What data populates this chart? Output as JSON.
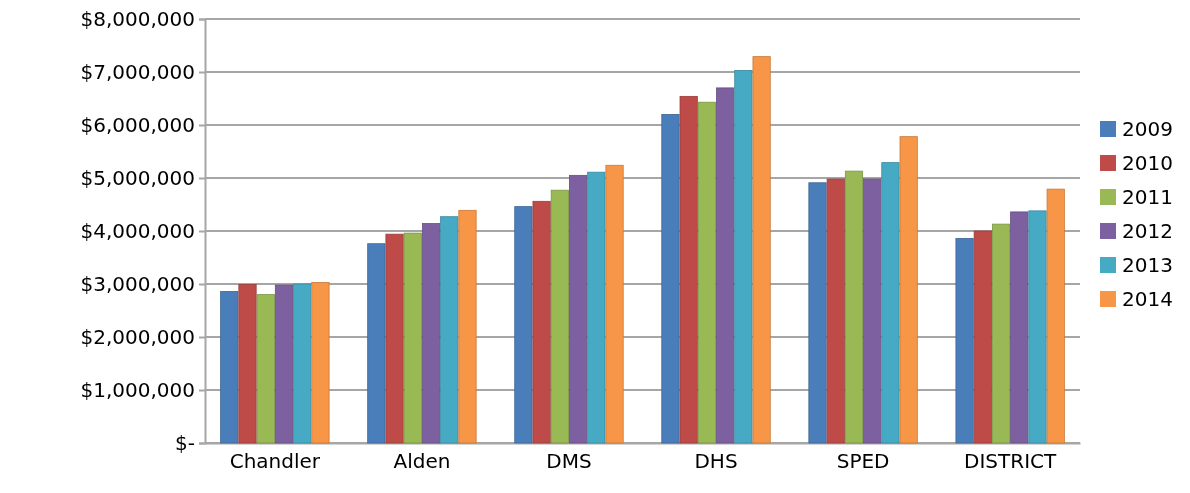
{
  "chart_data": {
    "type": "bar",
    "categories": [
      "Chandler",
      "Alden",
      "DMS",
      "DHS",
      "SPED",
      "DISTRICT"
    ],
    "series": [
      {
        "name": "2009",
        "color": "#4a7ebb",
        "values": [
          2860000,
          3760000,
          4460000,
          6200000,
          4910000,
          3860000
        ]
      },
      {
        "name": "2010",
        "color": "#be4b48",
        "values": [
          2990000,
          3940000,
          4560000,
          6540000,
          4980000,
          4000000
        ]
      },
      {
        "name": "2011",
        "color": "#98b954",
        "values": [
          2800000,
          3960000,
          4770000,
          6430000,
          5130000,
          4130000
        ]
      },
      {
        "name": "2012",
        "color": "#7d60a0",
        "values": [
          2980000,
          4140000,
          5050000,
          6700000,
          4980000,
          4360000
        ]
      },
      {
        "name": "2013",
        "color": "#46aac5",
        "values": [
          3000000,
          4270000,
          5110000,
          7030000,
          5290000,
          4380000
        ]
      },
      {
        "name": "2014",
        "color": "#f79646",
        "values": [
          3030000,
          4390000,
          5240000,
          7290000,
          5780000,
          4790000
        ]
      }
    ],
    "ylim": [
      0,
      8000000
    ],
    "yticks": [
      {
        "value": 0,
        "label": "$-"
      },
      {
        "value": 1000000,
        "label": "$1,000,000"
      },
      {
        "value": 2000000,
        "label": "$2,000,000"
      },
      {
        "value": 3000000,
        "label": "$3,000,000"
      },
      {
        "value": 4000000,
        "label": "$4,000,000"
      },
      {
        "value": 5000000,
        "label": "$5,000,000"
      },
      {
        "value": 6000000,
        "label": "$6,000,000"
      },
      {
        "value": 7000000,
        "label": "$7,000,000"
      },
      {
        "value": 8000000,
        "label": "$8,000,000"
      }
    ],
    "grid": "y",
    "legend": "right"
  }
}
